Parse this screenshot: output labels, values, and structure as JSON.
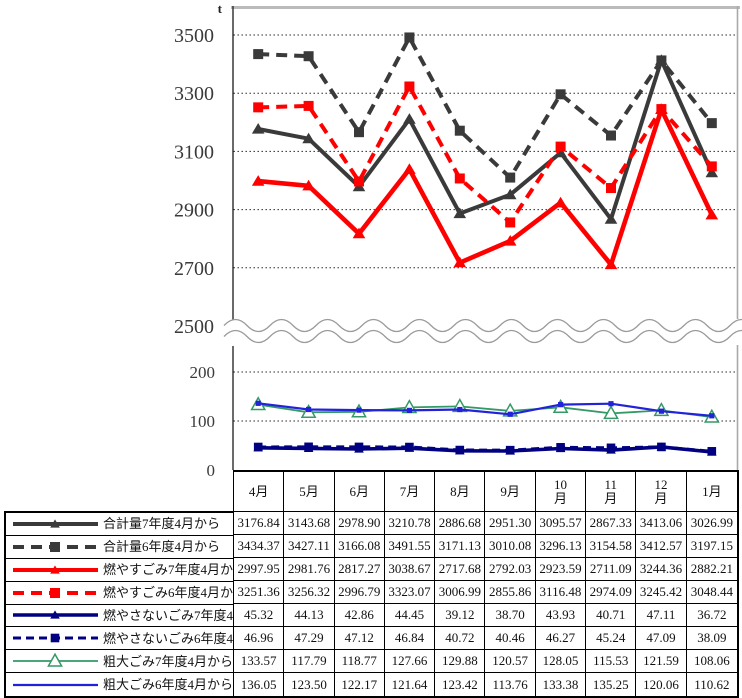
{
  "chart_data": {
    "type": "line",
    "title": "",
    "unit": "t",
    "broken_axis": true,
    "legend_position": "table-left",
    "grid": true,
    "categories": [
      "4月",
      "5月",
      "6月",
      "7月",
      "8月",
      "9月",
      "10月",
      "11月",
      "12月",
      "1月"
    ],
    "upper_axis": {
      "ticks": [
        3500,
        3300,
        3100,
        2900,
        2700,
        2500
      ],
      "ylim": [
        2500,
        3600
      ]
    },
    "lower_axis": {
      "ticks": [
        200,
        100,
        0
      ],
      "ylim": [
        0,
        245
      ]
    },
    "series": [
      {
        "name": "合計量7年度4月から",
        "panel": "upper",
        "color": "#3A3A3A",
        "line": "solid",
        "dash": "",
        "width": 4,
        "marker": "triangle",
        "values": [
          3176.84,
          3143.68,
          2978.9,
          3210.78,
          2886.68,
          2951.3,
          3095.57,
          2867.33,
          3413.06,
          3026.99
        ]
      },
      {
        "name": "合計量6年度4月から",
        "panel": "upper",
        "color": "#3A3A3A",
        "line": "dashed",
        "dash": "11,7",
        "width": 4,
        "marker": "square",
        "values": [
          3434.37,
          3427.11,
          3166.08,
          3491.55,
          3171.13,
          3010.08,
          3296.13,
          3154.58,
          3412.57,
          3197.15
        ]
      },
      {
        "name": "燃やすごみ7年度4月から",
        "panel": "upper",
        "color": "#FE0000",
        "line": "solid",
        "dash": "",
        "width": 4.6,
        "marker": "triangle",
        "values": [
          2997.95,
          2981.76,
          2817.27,
          3038.67,
          2717.68,
          2792.03,
          2923.59,
          2711.09,
          3244.36,
          2882.21
        ]
      },
      {
        "name": "燃やすごみ6年度4月から",
        "panel": "upper",
        "color": "#FE0000",
        "line": "dashed",
        "dash": "11,7",
        "width": 4,
        "marker": "square",
        "values": [
          3251.36,
          3256.32,
          2996.79,
          3323.07,
          3006.99,
          2855.86,
          3116.48,
          2974.09,
          3245.42,
          3048.44
        ]
      },
      {
        "name": "燃やさないごみ7年度4月から",
        "panel": "lower",
        "color": "#000080",
        "line": "solid",
        "dash": "",
        "width": 3.6,
        "marker": "triangle-sm",
        "values": [
          45.32,
          44.13,
          42.86,
          44.45,
          39.12,
          38.7,
          43.93,
          40.71,
          47.11,
          36.72
        ]
      },
      {
        "name": "燃やさないごみ6年度4月から",
        "panel": "lower",
        "color": "#000080",
        "line": "dashed",
        "dash": "8,5",
        "width": 3,
        "marker": "square-sm",
        "values": [
          46.96,
          47.29,
          47.12,
          46.84,
          40.72,
          40.46,
          46.27,
          45.24,
          47.09,
          38.09
        ]
      },
      {
        "name": "粗大ごみ7年度4月から",
        "panel": "lower",
        "color": "#339966",
        "line": "solid",
        "dash": "",
        "width": 1.8,
        "marker": "triangle-open",
        "values": [
          133.57,
          117.79,
          118.77,
          127.66,
          129.88,
          120.57,
          128.05,
          115.53,
          121.59,
          108.06
        ]
      },
      {
        "name": "粗大ごみ6年度4月から",
        "panel": "lower",
        "color": "#2222DB",
        "line": "solid",
        "dash": "",
        "width": 2.2,
        "marker": "square-xs",
        "values": [
          136.05,
          123.5,
          122.17,
          121.64,
          123.42,
          113.76,
          133.38,
          135.25,
          120.06,
          110.62
        ]
      }
    ]
  }
}
